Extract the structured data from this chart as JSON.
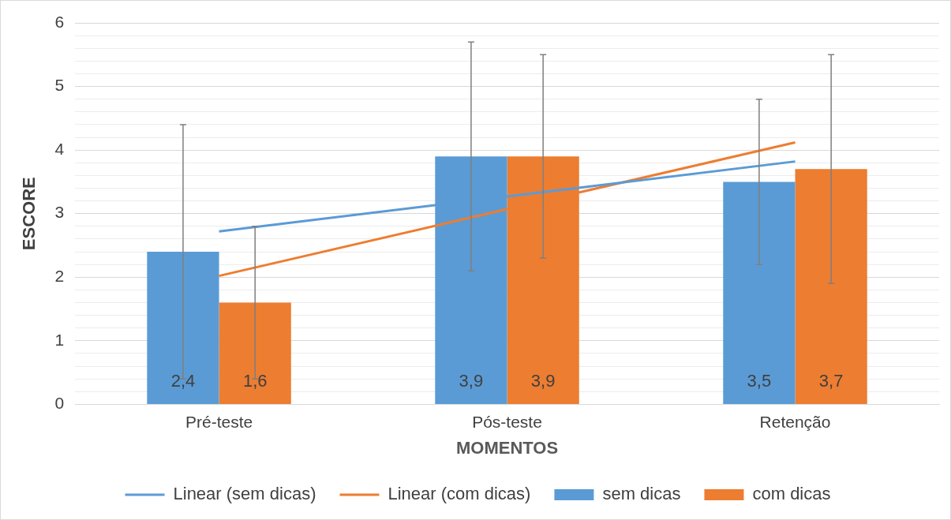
{
  "chart_data": {
    "type": "bar",
    "xlabel": "MOMENTOS",
    "ylabel": "ESCORE",
    "categories": [
      "Pré-teste",
      "Pós-teste",
      "Retenção"
    ],
    "series": [
      {
        "name": "sem dicas",
        "color": "#5b9bd5",
        "values": [
          2.4,
          3.9,
          3.5
        ],
        "errors": [
          2.0,
          1.8,
          1.3
        ],
        "value_labels": [
          "2,4",
          "3,9",
          "3,5"
        ]
      },
      {
        "name": "com dicas",
        "color": "#ed7d31",
        "values": [
          1.6,
          3.9,
          3.7
        ],
        "errors": [
          1.2,
          1.6,
          1.8
        ],
        "value_labels": [
          "1,6",
          "3,9",
          "3,7"
        ]
      },
      {
        "name": "Linear (sem dicas)",
        "type": "line",
        "color": "#5b9bd5",
        "values": [
          2.72,
          3.27,
          3.82
        ]
      },
      {
        "name": "Linear (com dicas)",
        "type": "line",
        "color": "#ed7d31",
        "values": [
          2.02,
          3.07,
          4.12
        ]
      }
    ],
    "ylim": [
      0,
      6
    ],
    "yticks": [
      0,
      {
        "value": 0.2,
        "label": null
      },
      {
        "value": 0.4,
        "label": null
      },
      {
        "value": 0.6,
        "label": null
      },
      {
        "value": 0.8,
        "label": null
      },
      1,
      {
        "value": 1.2,
        "label": null
      },
      {
        "value": 1.4,
        "label": null
      },
      {
        "value": 1.6,
        "label": null
      },
      {
        "value": 1.8,
        "label": null
      },
      2,
      {
        "value": 2.2,
        "label": null
      },
      {
        "value": 2.4,
        "label": null
      },
      {
        "value": 2.6,
        "label": null
      },
      {
        "value": 2.8,
        "label": null
      },
      3,
      {
        "value": 3.2,
        "label": null
      },
      {
        "value": 3.4,
        "label": null
      },
      {
        "value": 3.6,
        "label": null
      },
      {
        "value": 3.8,
        "label": null
      },
      4,
      {
        "value": 4.2,
        "label": null
      },
      {
        "value": 4.4,
        "label": null
      },
      {
        "value": 4.6,
        "label": null
      },
      {
        "value": 4.8,
        "label": null
      },
      5,
      {
        "value": 5.2,
        "label": null
      },
      {
        "value": 5.4,
        "label": null
      },
      {
        "value": 5.6,
        "label": null
      },
      {
        "value": 5.8,
        "label": null
      },
      6
    ],
    "grid": "y",
    "legend": "bottom",
    "line_style": "solid",
    "marker": "none"
  }
}
